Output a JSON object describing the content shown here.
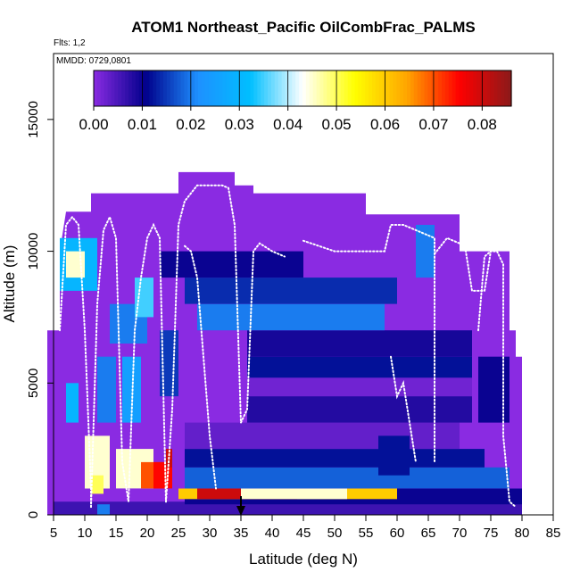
{
  "chart_data": {
    "type": "heatmap",
    "title": "ATOM1 Northeast_Pacific OilCombFrac_PALMS",
    "subtitle_flights": "Flts: 1,2",
    "subtitle_dates": "MMDD: 0729,0801",
    "xlabel": "Latitude (deg N)",
    "ylabel": "Altitude (m)",
    "xlim": [
      5,
      85
    ],
    "ylim": [
      0,
      17500
    ],
    "x_ticks": [
      "5",
      "10",
      "15",
      "20",
      "25",
      "30",
      "35",
      "40",
      "45",
      "50",
      "55",
      "60",
      "65",
      "70",
      "75",
      "80",
      "85"
    ],
    "y_ticks": [
      "0",
      "5000",
      "10000",
      "15000"
    ],
    "colorbar": {
      "range": [
        0,
        0.086
      ],
      "ticks": [
        "0.00",
        "0.01",
        "0.02",
        "0.03",
        "0.04",
        "0.05",
        "0.06",
        "0.07",
        "0.08"
      ],
      "colors": [
        "#8a2be2",
        "#00008b",
        "#1e90ff",
        "#00bfff",
        "#ffffff",
        "#ffff00",
        "#ffa500",
        "#ff0000",
        "#8b1a1a"
      ]
    },
    "background_value": 0.0,
    "marker_latitude": 35,
    "envelope": [
      [
        4,
        7000
      ],
      [
        6,
        7000
      ],
      [
        6,
        10000
      ],
      [
        7,
        11500
      ],
      [
        11,
        11500
      ],
      [
        11,
        12200
      ],
      [
        12,
        12200
      ],
      [
        12,
        12200
      ],
      [
        25,
        12200
      ],
      [
        25,
        13000
      ],
      [
        34,
        13000
      ],
      [
        34,
        12500
      ],
      [
        37,
        12500
      ],
      [
        37,
        12200
      ],
      [
        55,
        12200
      ],
      [
        55,
        11400
      ],
      [
        70,
        11400
      ],
      [
        70,
        10000
      ],
      [
        78,
        10000
      ],
      [
        78,
        7000
      ],
      [
        79,
        7000
      ],
      [
        79,
        6000
      ],
      [
        80,
        6000
      ],
      [
        80,
        0
      ],
      [
        4,
        0
      ]
    ],
    "layers": [
      {
        "lat": [
          5,
          80
        ],
        "alt": [
          0,
          500
        ],
        "value": 0.006
      },
      {
        "lat": [
          26,
          80
        ],
        "alt": [
          400,
          1000
        ],
        "value": 0.01
      },
      {
        "lat": [
          25,
          60
        ],
        "alt": [
          600,
          1000
        ],
        "value": 0.06
      },
      {
        "lat": [
          28,
          44
        ],
        "alt": [
          600,
          1000
        ],
        "value": 0.08
      },
      {
        "lat": [
          35,
          52
        ],
        "alt": [
          600,
          1000
        ],
        "value": 0.045
      },
      {
        "lat": [
          26,
          78
        ],
        "alt": [
          1000,
          1800
        ],
        "value": 0.018
      },
      {
        "lat": [
          26,
          74
        ],
        "alt": [
          1800,
          2500
        ],
        "value": 0.012
      },
      {
        "lat": [
          26,
          70
        ],
        "alt": [
          2500,
          3500
        ],
        "value": 0.003
      },
      {
        "lat": [
          36,
          72
        ],
        "alt": [
          3500,
          4500
        ],
        "value": 0.008
      },
      {
        "lat": [
          36,
          72
        ],
        "alt": [
          4500,
          5200
        ],
        "value": 0.002
      },
      {
        "lat": [
          36,
          72
        ],
        "alt": [
          5200,
          6000
        ],
        "value": 0.012
      },
      {
        "lat": [
          36,
          72
        ],
        "alt": [
          6000,
          7000
        ],
        "value": 0.009
      },
      {
        "lat": [
          28,
          58
        ],
        "alt": [
          7000,
          8000
        ],
        "value": 0.02
      },
      {
        "lat": [
          26,
          60
        ],
        "alt": [
          8000,
          9000
        ],
        "value": 0.014
      },
      {
        "lat": [
          22,
          45
        ],
        "alt": [
          9000,
          10000
        ],
        "value": 0.01
      },
      {
        "lat": [
          6,
          12
        ],
        "alt": [
          8500,
          10500
        ],
        "value": 0.03
      },
      {
        "lat": [
          7,
          10
        ],
        "alt": [
          9000,
          10000
        ],
        "value": 0.045
      },
      {
        "lat": [
          10,
          14
        ],
        "alt": [
          1000,
          3000
        ],
        "value": 0.045
      },
      {
        "lat": [
          11,
          13
        ],
        "alt": [
          800,
          1500
        ],
        "value": 0.05
      },
      {
        "lat": [
          15,
          21
        ],
        "alt": [
          1000,
          2500
        ],
        "value": 0.045
      },
      {
        "lat": [
          19,
          23
        ],
        "alt": [
          1000,
          2000
        ],
        "value": 0.07
      },
      {
        "lat": [
          21,
          24
        ],
        "alt": [
          1000,
          2000
        ],
        "value": 0.075
      },
      {
        "lat": [
          23,
          24
        ],
        "alt": [
          1800,
          2500
        ],
        "value": 0.08
      },
      {
        "lat": [
          12,
          15
        ],
        "alt": [
          3500,
          6000
        ],
        "value": 0.02
      },
      {
        "lat": [
          16,
          19
        ],
        "alt": [
          3500,
          6000
        ],
        "value": 0.025
      },
      {
        "lat": [
          14,
          20
        ],
        "alt": [
          6500,
          8000
        ],
        "value": 0.02
      },
      {
        "lat": [
          18,
          21
        ],
        "alt": [
          7500,
          9000
        ],
        "value": 0.035
      },
      {
        "lat": [
          22,
          25
        ],
        "alt": [
          4500,
          7000
        ],
        "value": 0.015
      },
      {
        "lat": [
          7,
          9
        ],
        "alt": [
          3500,
          5000
        ],
        "value": 0.03
      },
      {
        "lat": [
          63,
          66
        ],
        "alt": [
          9000,
          11000
        ],
        "value": 0.02
      },
      {
        "lat": [
          57,
          62
        ],
        "alt": [
          1500,
          3000
        ],
        "value": 0.012
      },
      {
        "lat": [
          73,
          78
        ],
        "alt": [
          3500,
          6000
        ],
        "value": 0.01
      },
      {
        "lat": [
          12,
          14
        ],
        "alt": [
          0,
          400
        ],
        "value": 0.02
      }
    ],
    "flight_tracks": [
      [
        [
          6,
          7000
        ],
        [
          7,
          11000
        ],
        [
          8,
          11300
        ],
        [
          9,
          11000
        ],
        [
          10,
          7000
        ],
        [
          11,
          1000
        ],
        [
          11,
          300
        ]
      ],
      [
        [
          11,
          300
        ],
        [
          12,
          8000
        ],
        [
          13,
          10800
        ],
        [
          14,
          11300
        ],
        [
          15,
          10500
        ],
        [
          16,
          2000
        ],
        [
          17,
          500
        ],
        [
          18,
          7000
        ],
        [
          19,
          9000
        ],
        [
          20,
          10500
        ],
        [
          21,
          11000
        ],
        [
          22,
          10500
        ],
        [
          23,
          500
        ]
      ],
      [
        [
          23,
          500
        ],
        [
          24,
          4000
        ],
        [
          25,
          11000
        ],
        [
          26,
          11900
        ],
        [
          27,
          12200
        ],
        [
          28,
          12500
        ],
        [
          30,
          12500
        ],
        [
          32,
          12500
        ],
        [
          33,
          12400
        ],
        [
          34,
          11000
        ],
        [
          35,
          3500
        ],
        [
          36,
          4000
        ],
        [
          37,
          10000
        ],
        [
          38,
          10300
        ],
        [
          40,
          10000
        ],
        [
          42,
          9800
        ]
      ],
      [
        [
          45,
          10400
        ],
        [
          50,
          10000
        ],
        [
          55,
          10000
        ],
        [
          57,
          10000
        ],
        [
          58,
          10000
        ],
        [
          59,
          11000
        ],
        [
          61,
          11000
        ],
        [
          63,
          10800
        ],
        [
          66,
          10500
        ],
        [
          66,
          2000
        ]
      ],
      [
        [
          66,
          9900
        ],
        [
          68,
          10500
        ],
        [
          70,
          10300
        ],
        [
          71,
          10000
        ],
        [
          72,
          8500
        ],
        [
          74,
          8500
        ],
        [
          75,
          10000
        ],
        [
          76,
          10000
        ],
        [
          77,
          9500
        ],
        [
          77,
          3000
        ],
        [
          78,
          500
        ],
        [
          79,
          300
        ]
      ],
      [
        [
          73,
          7000
        ],
        [
          74,
          9800
        ],
        [
          75,
          10000
        ]
      ],
      [
        [
          26,
          10200
        ],
        [
          27,
          10000
        ],
        [
          28,
          9000
        ],
        [
          29,
          6000
        ],
        [
          30,
          3000
        ],
        [
          31,
          1000
        ]
      ],
      [
        [
          59,
          6000
        ],
        [
          60,
          4500
        ],
        [
          61,
          5000
        ],
        [
          62,
          3500
        ],
        [
          63,
          2000
        ]
      ]
    ]
  }
}
